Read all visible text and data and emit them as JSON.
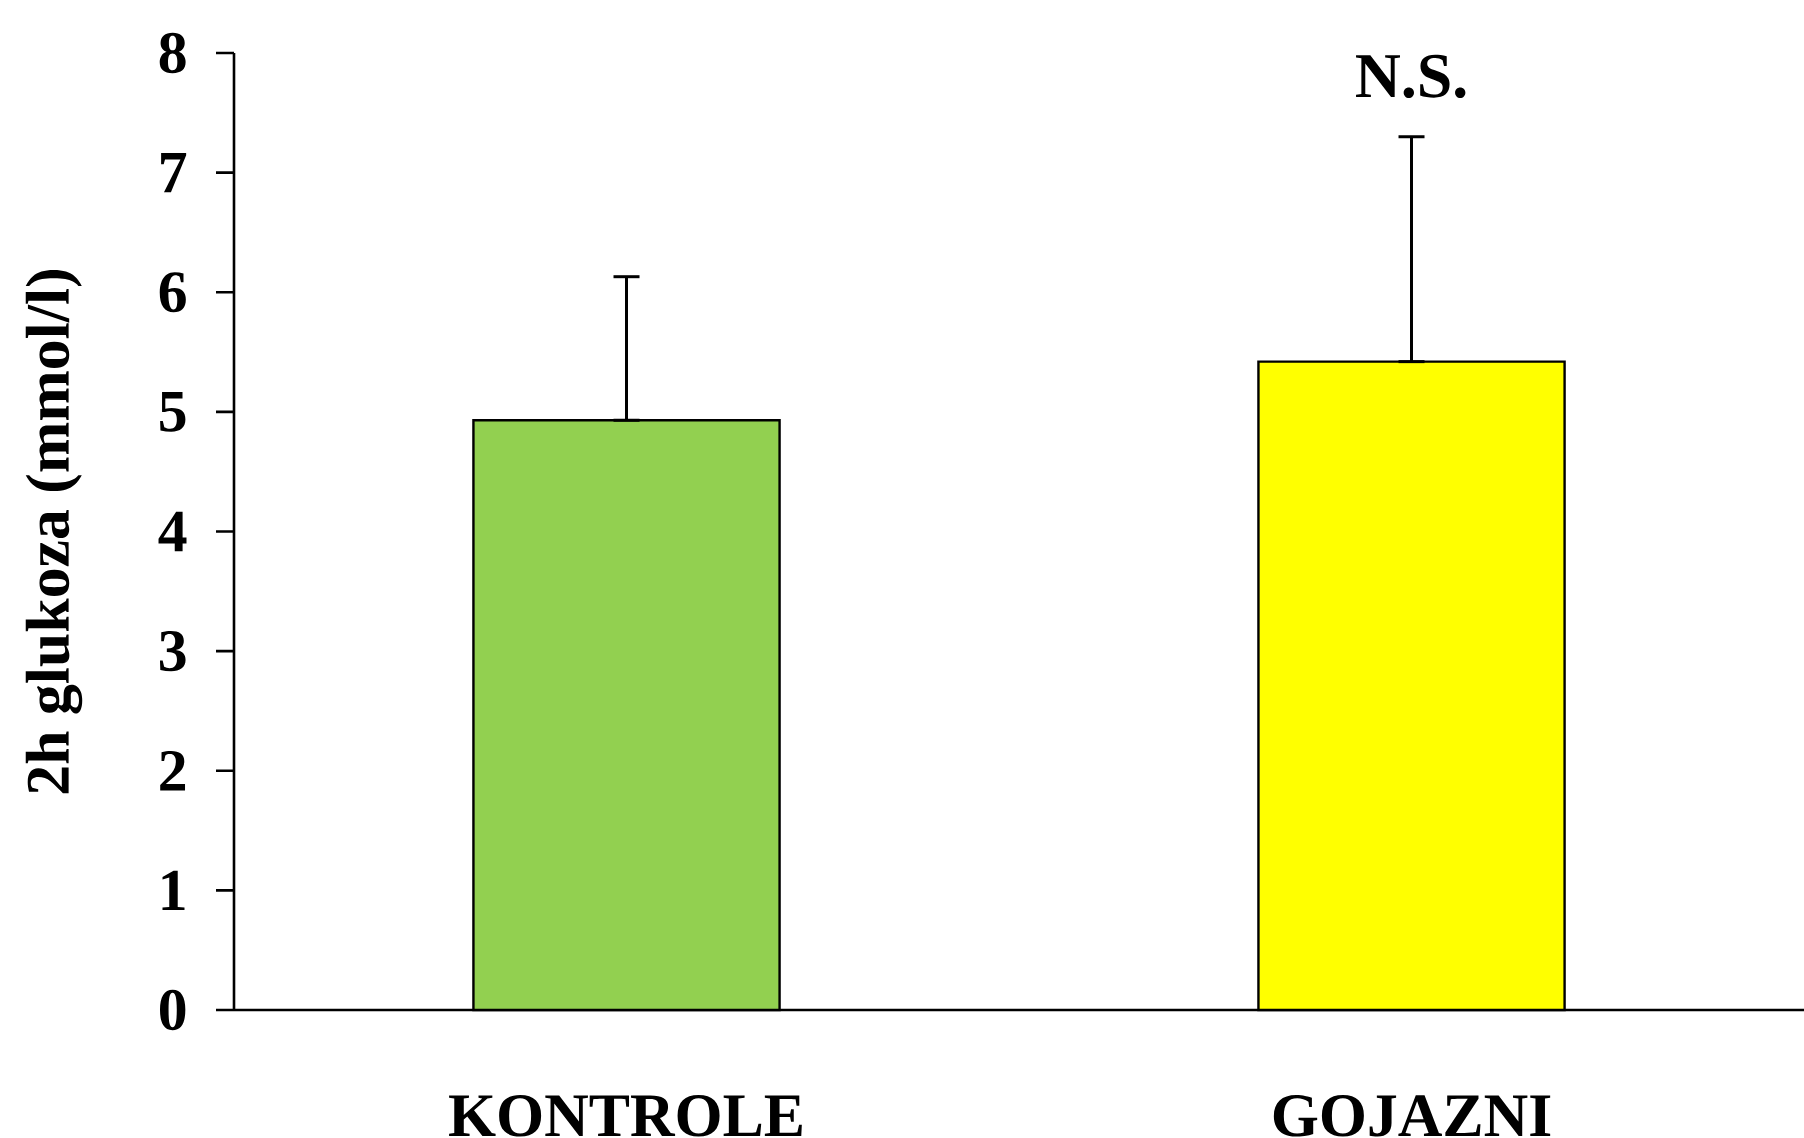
{
  "chart_data": {
    "type": "bar",
    "ylabel": "2h glukoza (mmol/l)",
    "categories": [
      "KONTROLE",
      "GOJAZNI"
    ],
    "values": [
      4.93,
      5.42
    ],
    "errors": [
      [
        4.93,
        6.13
      ],
      [
        5.42,
        7.3
      ]
    ],
    "colors": [
      "#92d050",
      "#ffff00"
    ],
    "ylim": [
      0,
      8
    ],
    "yticks": [
      0,
      1,
      2,
      3,
      4,
      5,
      6,
      7,
      8
    ],
    "annotations": [
      "N.S."
    ]
  }
}
